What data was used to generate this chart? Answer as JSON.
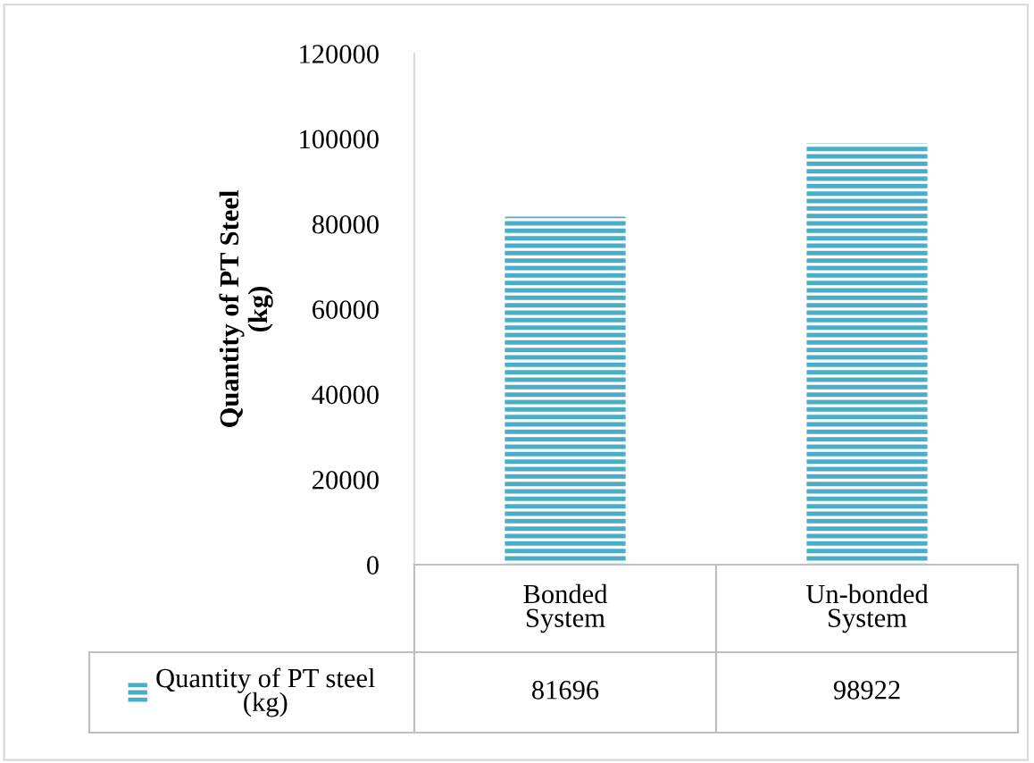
{
  "chart_data": {
    "type": "bar",
    "ylabel": "Quantity of PT Steel\n(kg)",
    "categories": [
      "Bonded\nSystem",
      "Un-bonded\nSystem"
    ],
    "series": [
      {
        "name": "Quantity of PT steel\n(kg)",
        "color": "#4bacc6",
        "values": [
          81696,
          98922
        ]
      }
    ],
    "ylim": [
      0,
      120000
    ],
    "yticks": [
      0,
      20000,
      40000,
      60000,
      80000,
      100000,
      120000
    ],
    "grid": false,
    "legend": "bottom",
    "data_labels": true
  }
}
